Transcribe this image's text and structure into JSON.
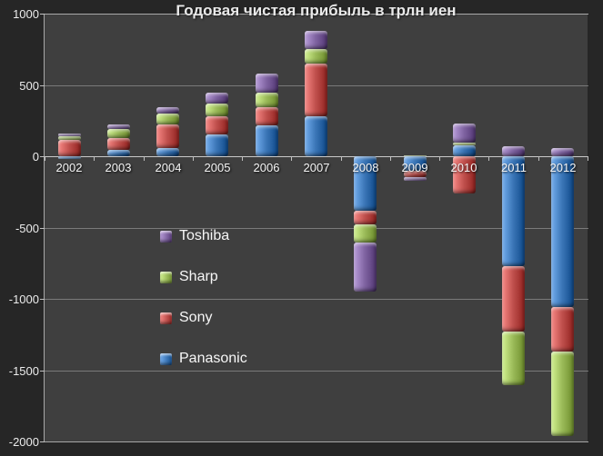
{
  "title": "Годовая чистая прибыль в трлн иен",
  "colors": {
    "outer_background": "#262626",
    "plot_background": "#3f3f3f",
    "gridline": "#8f8f8f",
    "axis_line": "#c9c9c9",
    "label_text": "#f5f5f5",
    "panasonic": "#3b76b7",
    "sony": "#c0504d",
    "sharp": "#9bbb59",
    "toshiba": "#8064a2"
  },
  "legend": {
    "items": [
      {
        "label": "Toshiba",
        "color": "#8064a2"
      },
      {
        "label": "Sharp",
        "color": "#9bbb59"
      },
      {
        "label": "Sony",
        "color": "#c0504d"
      },
      {
        "label": "Panasonic",
        "color": "#3b76b7"
      }
    ],
    "position": "over-plot-left-lower"
  },
  "y_axis": {
    "tick_labels": [
      "1000",
      "500",
      "0",
      "-500",
      "-1000",
      "-1500",
      "-2000"
    ],
    "tick_values": [
      1000,
      500,
      0,
      -500,
      -1000,
      -1500,
      -2000
    ]
  },
  "chart_data": {
    "type": "bar",
    "stacked": true,
    "title": "Годовая чистая прибыль в трлн иен",
    "xlabel": "",
    "ylabel": "",
    "ylim": [
      -2000,
      1000
    ],
    "grid": true,
    "categories": [
      "2002",
      "2003",
      "2004",
      "2005",
      "2006",
      "2007",
      "2008",
      "2009",
      "2010",
      "2011",
      "2012"
    ],
    "series": [
      {
        "name": "Panasonic",
        "color": "#3b76b7",
        "values": [
          -20,
          42,
          59,
          154,
          217,
          282,
          -379,
          -105,
          74,
          -772,
          -1060
        ]
      },
      {
        "name": "Sony",
        "color": "#c0504d",
        "values": [
          115,
          88,
          164,
          124,
          126,
          369,
          -99,
          -40,
          -260,
          -457,
          -310
        ]
      },
      {
        "name": "Sharp",
        "color": "#9bbb59",
        "values": [
          26,
          61,
          77,
          89,
          102,
          102,
          -126,
          5,
          19,
          -377,
          -590
        ]
      },
      {
        "name": "Toshiba",
        "color": "#8064a2",
        "values": [
          19,
          29,
          46,
          78,
          137,
          127,
          -344,
          -25,
          138,
          70,
          55
        ]
      }
    ]
  }
}
